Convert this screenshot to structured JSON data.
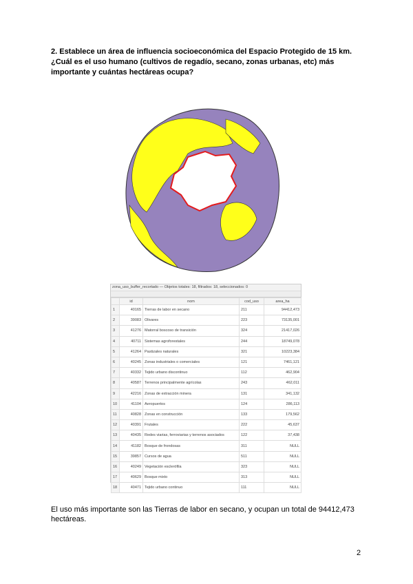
{
  "question": [
    "2. Establece un área de influencia socioeconómica del Espacio Protegido de 15 km.",
    "¿Cuál es el uso humano (cultivos de regadío, secano, zonas urbanas, etc) más",
    "importante y cuántas hectáreas ocupa?"
  ],
  "table": {
    "title": "zona_uso_buffer_recortado — Objetos totales: 18, filtrados: 18, seleccionados: 0",
    "columns": [
      "",
      "id",
      "nom",
      "cod_uso",
      "area_ha"
    ],
    "rows": [
      [
        "1",
        "40165",
        "Tierras de labor en secano",
        "211",
        "94412,473"
      ],
      [
        "2",
        "39083",
        "Olivares",
        "223",
        "73135,001"
      ],
      [
        "3",
        "41276",
        "Matorral boscoso de transición",
        "324",
        "21417,026"
      ],
      [
        "4",
        "40711",
        "Sistemas agroforestales",
        "244",
        "18749,078"
      ],
      [
        "5",
        "41264",
        "Pastizales naturales",
        "321",
        "10223,384"
      ],
      [
        "6",
        "40245",
        "Zonas industriales o comerciales",
        "121",
        "7461,121"
      ],
      [
        "7",
        "40332",
        "Tejido urbano discontinuo",
        "112",
        "462,904"
      ],
      [
        "8",
        "40587",
        "Terrenos principalmente agrícolas",
        "243",
        "462,011"
      ],
      [
        "9",
        "42216",
        "Zonas de extracción minera",
        "131",
        "341,132"
      ],
      [
        "10",
        "41104",
        "Aeropuertos",
        "124",
        "286,113"
      ],
      [
        "11",
        "40828",
        "Zonas en construcción",
        "133",
        "179,562"
      ],
      [
        "12",
        "40391",
        "Frutales",
        "222",
        "45,637"
      ],
      [
        "13",
        "40435",
        "Redes viarias, ferroviarias y terrenos asociados",
        "122",
        "37,438"
      ],
      [
        "14",
        "41182",
        "Bosque de frondosas",
        "311",
        "NULL"
      ],
      [
        "15",
        "39857",
        "Cursos de agua",
        "511",
        "NULL"
      ],
      [
        "16",
        "40249",
        "Vegetación esclerófila",
        "323",
        "NULL"
      ],
      [
        "17",
        "40629",
        "Bosque mixto",
        "313",
        "NULL"
      ],
      [
        "18",
        "40471",
        "Tejido urbano continuo",
        "111",
        "NULL"
      ]
    ]
  },
  "answer": [
    "El uso más importante son las Tierras de labor en secano, y ocupan un total de  94412,473",
    "hectáreas."
  ],
  "page_number": "2"
}
